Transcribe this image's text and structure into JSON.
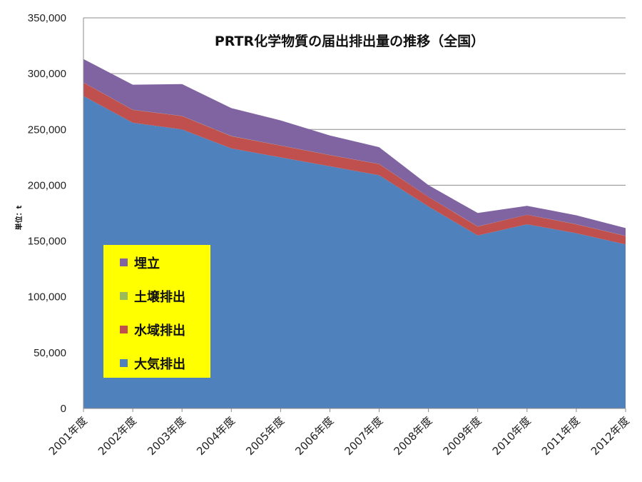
{
  "chart_data": {
    "type": "area",
    "stacked": true,
    "title": "PRTR化学物質の届出排出量の推移（全国）",
    "ylabel": "単位：t",
    "xlabel": "",
    "categories": [
      "2001年度",
      "2002年度",
      "2003年度",
      "2004年度",
      "2005年度",
      "2006年度",
      "2007年度",
      "2008年度",
      "2009年度",
      "2010年度",
      "2011年度",
      "2012年度"
    ],
    "ylim": [
      0,
      350000
    ],
    "yticks": [
      "0",
      "50,000",
      "100,000",
      "150,000",
      "200,000",
      "250,000",
      "300,000",
      "350,000"
    ],
    "ytick_values": [
      0,
      50000,
      100000,
      150000,
      200000,
      250000,
      300000,
      350000
    ],
    "grid": true,
    "legend_position": "left",
    "series": [
      {
        "name": "大気排出",
        "color": "#4f81bd",
        "values": [
          280000,
          256000,
          250000,
          233000,
          225000,
          217000,
          209000,
          181000,
          155000,
          165000,
          157000,
          147000
        ]
      },
      {
        "name": "水域排出",
        "color": "#c0504d",
        "values": [
          12000,
          11500,
          12000,
          11000,
          10500,
          10000,
          10000,
          8500,
          8000,
          8500,
          8000,
          7500
        ]
      },
      {
        "name": "土壌排出",
        "color": "#9bbb59",
        "values": [
          100,
          100,
          100,
          100,
          100,
          100,
          100,
          100,
          100,
          100,
          100,
          100
        ]
      },
      {
        "name": "埋立",
        "color": "#8064a2",
        "values": [
          21000,
          22500,
          28500,
          25000,
          22500,
          17500,
          15000,
          10500,
          12000,
          8000,
          8000,
          7000
        ]
      }
    ],
    "legend_order": [
      "埋立",
      "土壌排出",
      "水域排出",
      "大気排出"
    ],
    "legend_background": "#ffff00"
  }
}
